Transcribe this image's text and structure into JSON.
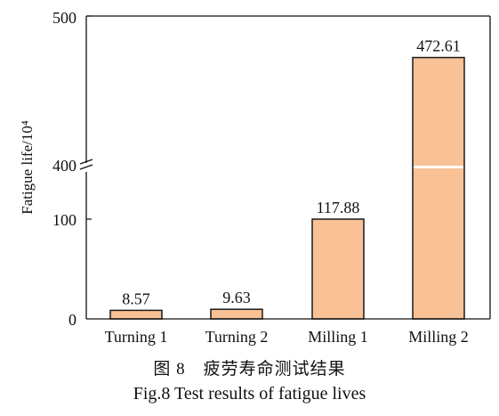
{
  "chart_data": {
    "type": "bar",
    "title": "",
    "xlabel": "",
    "ylabel": "Fatigue life/10⁴",
    "categories": [
      "Turning 1",
      "Turning 2",
      "Milling 1",
      "Milling 2"
    ],
    "values": [
      8.57,
      9.63,
      117.88,
      472.61
    ],
    "value_labels": [
      "8.57",
      "9.63",
      "117.88",
      "472.61"
    ],
    "y_ticks": [
      "500",
      "400",
      "100",
      "0"
    ],
    "axis_break": {
      "lower_range": [
        0,
        100
      ],
      "upper_range": [
        400,
        500
      ]
    },
    "bar_color": "#F8C196",
    "bar_edge_color": "#1a1a1a",
    "grid": false,
    "legend": "none"
  },
  "caption": {
    "chinese": "图 8　疲劳寿命测试结果",
    "english": "Fig.8 Test results of fatigue lives"
  }
}
